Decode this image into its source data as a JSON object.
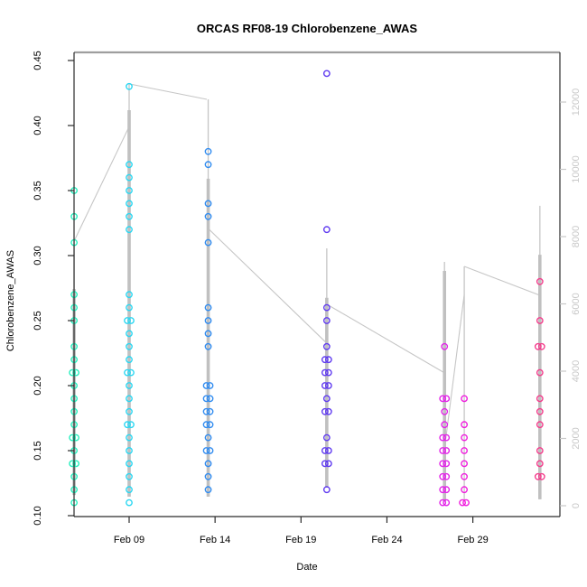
{
  "chart_data": {
    "type": "scatter",
    "title": "ORCAS RF08-19 Chlorobenzene_AWAS",
    "xlabel": "Date",
    "ylabel": "Chlorobenzene_AWAS",
    "grid": false,
    "legend": "none",
    "axes": {
      "x": {
        "ticks": [
          {
            "day": 9,
            "label": "Feb 09"
          },
          {
            "day": 14,
            "label": "Feb 14"
          },
          {
            "day": 19,
            "label": "Feb 19"
          },
          {
            "day": 24,
            "label": "Feb 24"
          },
          {
            "day": 29,
            "label": "Feb 29"
          }
        ],
        "range_days": [
          5.0,
          34.0
        ]
      },
      "y_left": {
        "ticks": [
          {
            "value": 0.1,
            "label": "0.10"
          },
          {
            "value": 0.15,
            "label": "0.15"
          },
          {
            "value": 0.2,
            "label": "0.20"
          },
          {
            "value": 0.25,
            "label": "0.25"
          },
          {
            "value": 0.3,
            "label": "0.30"
          },
          {
            "value": 0.35,
            "label": "0.35"
          },
          {
            "value": 0.4,
            "label": "0.40"
          },
          {
            "value": 0.45,
            "label": "0.45"
          }
        ],
        "range": [
          0.099,
          0.456
        ],
        "color": "#000000"
      },
      "y_right": {
        "ticks": [
          {
            "value": 0,
            "label": "0"
          },
          {
            "value": 2000,
            "label": "2000"
          },
          {
            "value": 4000,
            "label": "4000"
          },
          {
            "value": 6000,
            "label": "6000"
          },
          {
            "value": 8000,
            "label": "8000"
          },
          {
            "value": 10000,
            "label": "10000"
          },
          {
            "value": 12000,
            "label": "12000"
          }
        ],
        "range": [
          -320,
          13400
        ],
        "color": "#c8c8c8"
      }
    },
    "flights": [
      {
        "id": "flight-1",
        "day": 5.8,
        "color": "#25EFBE",
        "values": [
          0.35,
          0.33,
          0.31,
          0.27,
          0.26,
          0.25,
          0.23,
          0.22,
          0.21,
          0.21,
          0.2,
          0.19,
          0.18,
          0.17,
          0.16,
          0.16,
          0.15,
          0.14,
          0.14,
          0.13,
          0.12,
          0.11
        ]
      },
      {
        "id": "flight-2",
        "day": 9.0,
        "color": "#2BD7F2",
        "values": [
          0.43,
          0.37,
          0.36,
          0.35,
          0.34,
          0.33,
          0.32,
          0.27,
          0.26,
          0.25,
          0.25,
          0.24,
          0.23,
          0.22,
          0.21,
          0.21,
          0.2,
          0.19,
          0.18,
          0.17,
          0.17,
          0.16,
          0.15,
          0.14,
          0.13,
          0.12,
          0.11
        ]
      },
      {
        "id": "flight-3",
        "day": 13.6,
        "color": "#318CF0",
        "values": [
          0.38,
          0.37,
          0.34,
          0.33,
          0.31,
          0.26,
          0.25,
          0.24,
          0.23,
          0.2,
          0.2,
          0.19,
          0.19,
          0.18,
          0.18,
          0.17,
          0.17,
          0.16,
          0.15,
          0.15,
          0.14,
          0.13,
          0.12
        ]
      },
      {
        "id": "flight-4",
        "day": 20.5,
        "color": "#5F3AF0",
        "values": [
          0.44,
          0.32,
          0.26,
          0.25,
          0.23,
          0.22,
          0.22,
          0.21,
          0.21,
          0.2,
          0.2,
          0.19,
          0.18,
          0.18,
          0.16,
          0.15,
          0.15,
          0.14,
          0.14,
          0.12
        ]
      },
      {
        "id": "flight-5",
        "day": 27.35,
        "color": "#E324E9",
        "values": [
          0.23,
          0.19,
          0.19,
          0.18,
          0.17,
          0.16,
          0.16,
          0.15,
          0.15,
          0.14,
          0.14,
          0.13,
          0.13,
          0.12,
          0.12,
          0.11,
          0.11
        ]
      },
      {
        "id": "flight-6",
        "day": 28.5,
        "color": "#F01FDE",
        "values": [
          0.19,
          0.17,
          0.16,
          0.15,
          0.14,
          0.13,
          0.12,
          0.11,
          0.11
        ]
      },
      {
        "id": "flight-7",
        "day": 32.9,
        "color": "#F43C8C",
        "values": [
          0.28,
          0.25,
          0.23,
          0.23,
          0.21,
          0.19,
          0.18,
          0.17,
          0.15,
          0.14,
          0.13,
          0.13
        ]
      }
    ],
    "profile_line": {
      "color": "#c6c6c6",
      "axis": "y_right",
      "bars": [
        {
          "day": 5.8,
          "r_lo": 320,
          "r_hi": 6440,
          "r_spike": 7870
        },
        {
          "day": 9.0,
          "r_lo": 270,
          "r_hi": 11760,
          "r_spike": 12540
        },
        {
          "day": 13.6,
          "r_lo": 270,
          "r_hi": 9720,
          "r_spike": 12080
        },
        {
          "day": 20.5,
          "r_lo": 540,
          "r_hi": 6180,
          "r_spike": 7650
        },
        {
          "day": 27.35,
          "r_lo": 130,
          "r_hi": 6980,
          "r_spike": 7250
        },
        {
          "day": 28.5,
          "r_lo": 134,
          "r_hi": 134,
          "r_spike": 7115
        },
        {
          "day": 32.9,
          "r_lo": 190,
          "r_hi": 7460,
          "r_spike": 8915
        }
      ],
      "segments": [
        {
          "d1": 5.8,
          "r1": 7870,
          "d2": 9.0,
          "r2": 11270
        },
        {
          "d1": 9.0,
          "r1": 12540,
          "d2": 13.52,
          "r2": 12080
        },
        {
          "d1": 13.6,
          "r1": 8240,
          "d2": 20.5,
          "r2": 4830
        },
        {
          "d1": 20.5,
          "r1": 5990,
          "d2": 27.35,
          "r2": 3950
        },
        {
          "d1": 27.35,
          "r1": 1690,
          "d2": 28.5,
          "r2": 6280
        },
        {
          "d1": 28.5,
          "r1": 7115,
          "d2": 32.9,
          "r2": 6255
        }
      ]
    },
    "style": {
      "box_color": "#2b2b2b",
      "box_top_color": "#9e9e9e",
      "point_radius": 3.2,
      "point_stroke_width": 1.4
    }
  }
}
